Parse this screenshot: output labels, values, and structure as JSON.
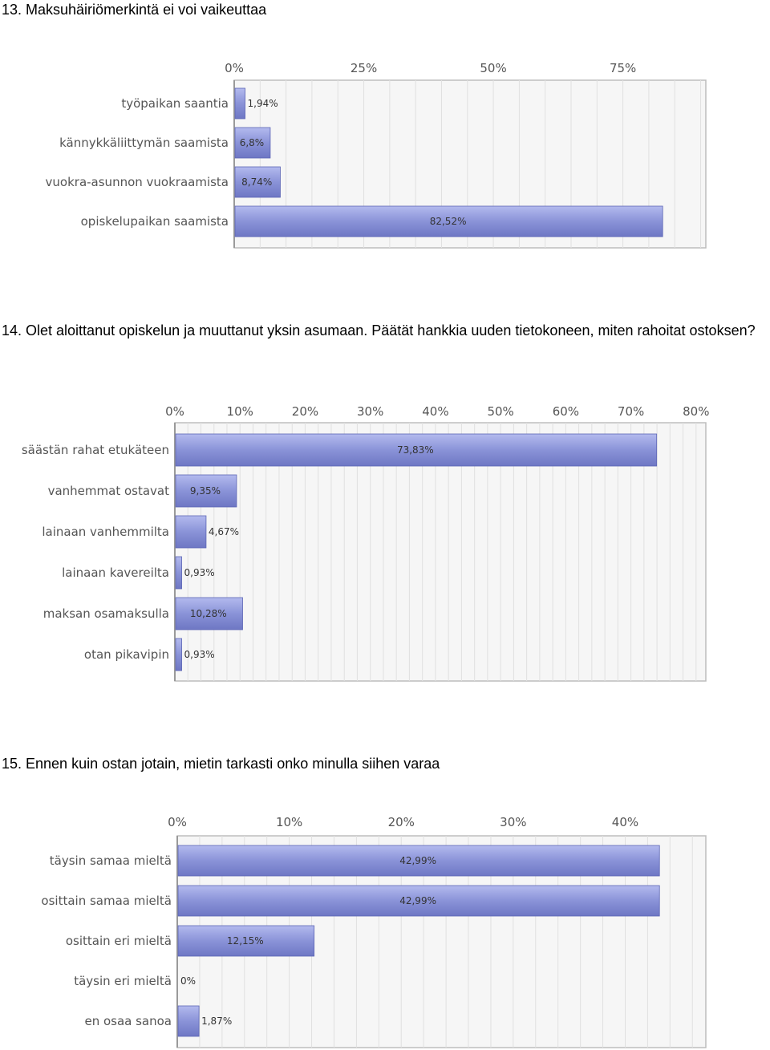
{
  "questions": [
    {
      "title": "13. Maksuhäiriömerkintä ei voi vaikeuttaa",
      "chart_data": {
        "type": "bar",
        "orientation": "horizontal",
        "categories": [
          "työpaikan saantia",
          "kännykkäliittymän saamista",
          "vuokra-asunnon vuokraamista",
          "opiskelupaikan saamista"
        ],
        "values": [
          1.94,
          6.8,
          8.74,
          82.52
        ],
        "value_labels": [
          "1,94%",
          "6,8%",
          "8,74%",
          "82,52%"
        ],
        "xlim": [
          0,
          91
        ],
        "ticks": [
          0,
          25,
          50,
          75
        ],
        "tick_labels": [
          "0%",
          "25%",
          "50%",
          "75%"
        ],
        "grid": true,
        "bar_color": "#8a93d8"
      }
    },
    {
      "title": "14. Olet aloittanut opiskelun ja muuttanut yksin asumaan. Päätät hankkia uuden tietokoneen, miten rahoitat ostoksen?",
      "chart_data": {
        "type": "bar",
        "orientation": "horizontal",
        "categories": [
          "säästän rahat etukäteen",
          "vanhemmat ostavat",
          "lainaan vanhemmilta",
          "lainaan kavereilta",
          "maksan osamaksulla",
          "otan pikavipin"
        ],
        "values": [
          73.83,
          9.35,
          4.67,
          0.93,
          10.28,
          0.93
        ],
        "value_labels": [
          "73,83%",
          "9,35%",
          "4,67%",
          "0,93%",
          "10,28%",
          "0,93%"
        ],
        "xlim": [
          0,
          81.5
        ],
        "ticks": [
          0,
          10,
          20,
          30,
          40,
          50,
          60,
          70,
          80
        ],
        "tick_labels": [
          "0%",
          "10%",
          "20%",
          "30%",
          "40%",
          "50%",
          "60%",
          "70%",
          "80%"
        ],
        "grid": true,
        "bar_color": "#8a93d8"
      }
    },
    {
      "title": "15. Ennen kuin ostan jotain, mietin tarkasti onko minulla siihen varaa",
      "chart_data": {
        "type": "bar",
        "orientation": "horizontal",
        "categories": [
          "täysin samaa mieltä",
          "osittain samaa mieltä",
          "osittain eri mieltä",
          "täysin eri mieltä",
          "en osaa sanoa"
        ],
        "values": [
          42.99,
          42.99,
          12.15,
          0,
          1.87
        ],
        "value_labels": [
          "42,99%",
          "42,99%",
          "12,15%",
          "0%",
          "1,87%"
        ],
        "xlim": [
          0,
          47.2
        ],
        "ticks": [
          0,
          10,
          20,
          30,
          40
        ],
        "tick_labels": [
          "0%",
          "10%",
          "20%",
          "30%",
          "40%"
        ],
        "grid": true,
        "bar_color": "#8a93d8"
      }
    }
  ]
}
